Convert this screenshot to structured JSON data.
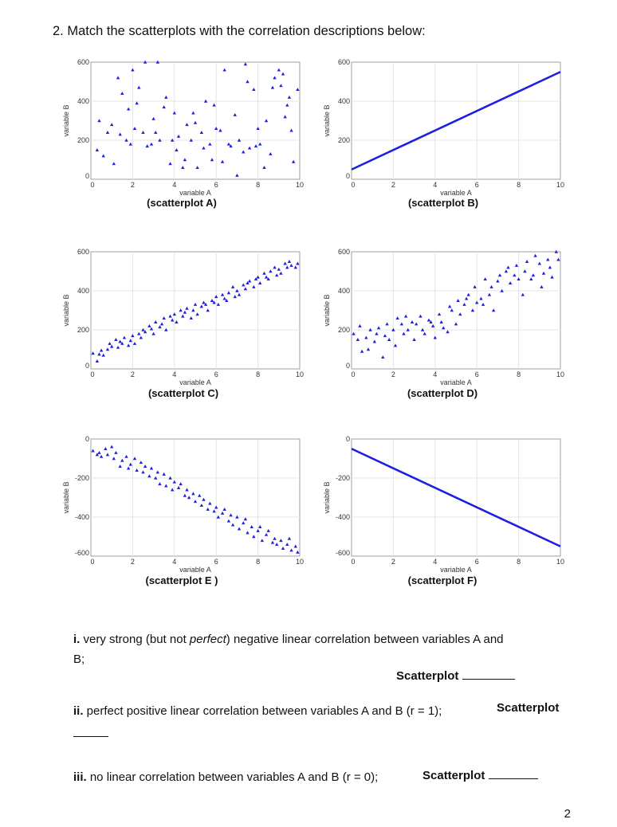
{
  "heading": "2.  Match the scatterplots with the correlation descriptions below:",
  "captions": {
    "A": "(scatterplot A)",
    "B": "(scatterplot B)",
    "C": "(scatterplot C)",
    "D": "(scatterplot D)",
    "E": "(scatterplot E )",
    "F": "(scatterplot F)"
  },
  "questions": {
    "i_num": "i.",
    "i_text_before": " very strong (but not ",
    "i_text_italic": "perfect",
    "i_text_after": ") negative linear correlation between variables A and",
    "i_text_line2": "B;",
    "i_answer": "Scatterplot",
    "ii_num": "ii.",
    "ii_text": " perfect positive linear correlation between variables A and B (r = 1);",
    "ii_answer": "Scatterplot",
    "iii_num": "iii.",
    "iii_text": " no linear correlation between variables A and B (r = 0);",
    "iii_answer": "Scatterplot"
  },
  "page_number": "2",
  "colors": {
    "points": "#1f1fe0",
    "grid": "#e4e4e4",
    "axis": "#888888"
  },
  "chart_data": [
    {
      "id": "A",
      "type": "scatter",
      "xlabel": "variable A",
      "ylabel": "variable B",
      "xlim": [
        0,
        10
      ],
      "ylim": [
        0,
        600
      ],
      "xticks": [
        "0",
        "2",
        "4",
        "6",
        "8",
        "10"
      ],
      "yticks": [
        "0",
        "200",
        "400",
        "600"
      ],
      "x": [
        0.3,
        0.4,
        0.6,
        0.8,
        1.0,
        1.1,
        1.3,
        1.4,
        1.5,
        1.7,
        1.8,
        1.9,
        2.0,
        2.1,
        2.2,
        2.3,
        2.5,
        2.6,
        2.7,
        2.9,
        3.0,
        3.1,
        3.2,
        3.3,
        3.5,
        3.6,
        3.8,
        3.9,
        4.0,
        4.1,
        4.2,
        4.4,
        4.5,
        4.6,
        4.8,
        4.9,
        5.0,
        5.1,
        5.3,
        5.4,
        5.5,
        5.7,
        5.8,
        5.9,
        6.0,
        6.2,
        6.3,
        6.4,
        6.6,
        6.7,
        6.9,
        7.0,
        7.1,
        7.3,
        7.4,
        7.5,
        7.6,
        7.8,
        7.9,
        8.0,
        8.1,
        8.3,
        8.4,
        8.6,
        8.7,
        8.8,
        9.0,
        9.1,
        9.2,
        9.3,
        9.4,
        9.5,
        9.6,
        9.7,
        9.9
      ],
      "y": [
        150,
        300,
        120,
        240,
        280,
        80,
        520,
        230,
        440,
        200,
        360,
        180,
        560,
        260,
        390,
        470,
        240,
        600,
        170,
        180,
        310,
        240,
        600,
        200,
        370,
        420,
        80,
        200,
        340,
        150,
        220,
        60,
        100,
        280,
        200,
        340,
        290,
        60,
        240,
        160,
        400,
        180,
        100,
        380,
        260,
        250,
        90,
        560,
        180,
        170,
        330,
        20,
        200,
        140,
        590,
        500,
        160,
        460,
        170,
        260,
        180,
        60,
        300,
        130,
        470,
        520,
        560,
        480,
        540,
        320,
        380,
        420,
        250,
        90,
        460
      ]
    },
    {
      "id": "B",
      "type": "line",
      "xlabel": "variable A",
      "ylabel": "variable B",
      "xlim": [
        0,
        10
      ],
      "ylim": [
        0,
        600
      ],
      "xticks": [
        "0",
        "2",
        "4",
        "6",
        "8",
        "10"
      ],
      "yticks": [
        "0",
        "200",
        "400",
        "600"
      ],
      "x": [
        0,
        10
      ],
      "y": [
        50,
        550
      ]
    },
    {
      "id": "C",
      "type": "scatter",
      "xlabel": "variable A",
      "ylabel": "variable B",
      "xlim": [
        0,
        10
      ],
      "ylim": [
        0,
        600
      ],
      "xticks": [
        "0",
        "2",
        "4",
        "6",
        "8",
        "10"
      ],
      "yticks": [
        "0",
        "200",
        "400",
        "600"
      ],
      "x": [
        0.1,
        0.3,
        0.4,
        0.5,
        0.6,
        0.8,
        0.9,
        1.0,
        1.2,
        1.3,
        1.4,
        1.5,
        1.6,
        1.8,
        1.9,
        2.0,
        2.1,
        2.3,
        2.4,
        2.5,
        2.6,
        2.8,
        2.9,
        3.0,
        3.1,
        3.3,
        3.4,
        3.5,
        3.6,
        3.8,
        3.9,
        4.0,
        4.1,
        4.3,
        4.4,
        4.5,
        4.6,
        4.8,
        4.9,
        5.0,
        5.1,
        5.3,
        5.4,
        5.5,
        5.6,
        5.8,
        5.9,
        6.0,
        6.1,
        6.3,
        6.4,
        6.5,
        6.6,
        6.8,
        6.9,
        7.0,
        7.1,
        7.3,
        7.4,
        7.5,
        7.6,
        7.8,
        7.9,
        8.0,
        8.1,
        8.3,
        8.4,
        8.5,
        8.6,
        8.8,
        8.9,
        9.0,
        9.1,
        9.3,
        9.4,
        9.5,
        9.6,
        9.8,
        9.9
      ],
      "y": [
        80,
        40,
        75,
        95,
        70,
        100,
        130,
        115,
        150,
        110,
        140,
        130,
        160,
        120,
        145,
        170,
        130,
        180,
        160,
        200,
        190,
        220,
        205,
        180,
        240,
        215,
        230,
        260,
        200,
        270,
        250,
        280,
        240,
        300,
        270,
        290,
        310,
        260,
        300,
        330,
        280,
        320,
        340,
        330,
        300,
        350,
        340,
        370,
        330,
        380,
        360,
        350,
        390,
        420,
        370,
        400,
        380,
        430,
        410,
        440,
        450,
        420,
        460,
        470,
        440,
        490,
        470,
        460,
        500,
        520,
        480,
        510,
        490,
        540,
        520,
        550,
        530,
        520,
        540
      ]
    },
    {
      "id": "D",
      "type": "scatter",
      "xlabel": "variable A",
      "ylabel": "variable B",
      "xlim": [
        0,
        10
      ],
      "ylim": [
        0,
        600
      ],
      "xticks": [
        "0",
        "2",
        "4",
        "6",
        "8",
        "10"
      ],
      "yticks": [
        "0",
        "200",
        "400",
        "600"
      ],
      "x": [
        0.1,
        0.3,
        0.4,
        0.5,
        0.7,
        0.8,
        0.9,
        1.1,
        1.2,
        1.3,
        1.5,
        1.6,
        1.7,
        1.8,
        2.0,
        2.1,
        2.2,
        2.4,
        2.5,
        2.6,
        2.7,
        2.9,
        3.0,
        3.1,
        3.3,
        3.4,
        3.5,
        3.7,
        3.8,
        3.9,
        4.0,
        4.2,
        4.3,
        4.4,
        4.6,
        4.7,
        4.8,
        5.0,
        5.1,
        5.2,
        5.4,
        5.5,
        5.6,
        5.8,
        5.9,
        6.0,
        6.2,
        6.3,
        6.4,
        6.6,
        6.7,
        6.8,
        7.0,
        7.1,
        7.2,
        7.4,
        7.5,
        7.6,
        7.8,
        7.9,
        8.0,
        8.2,
        8.3,
        8.4,
        8.6,
        8.7,
        8.8,
        9.0,
        9.1,
        9.2,
        9.4,
        9.5,
        9.6,
        9.8,
        9.9
      ],
      "y": [
        180,
        150,
        220,
        90,
        160,
        100,
        200,
        140,
        180,
        210,
        60,
        170,
        230,
        150,
        200,
        120,
        260,
        230,
        180,
        270,
        200,
        240,
        150,
        230,
        270,
        200,
        180,
        250,
        240,
        220,
        160,
        280,
        240,
        210,
        190,
        320,
        300,
        230,
        350,
        280,
        330,
        360,
        380,
        300,
        420,
        340,
        360,
        330,
        460,
        380,
        420,
        300,
        450,
        480,
        400,
        500,
        520,
        440,
        480,
        530,
        460,
        380,
        500,
        550,
        460,
        480,
        580,
        540,
        420,
        490,
        560,
        520,
        470,
        600,
        560
      ]
    },
    {
      "id": "E",
      "type": "scatter",
      "xlabel": "variable A",
      "ylabel": "variable B",
      "xlim": [
        0,
        10
      ],
      "ylim": [
        -600,
        0
      ],
      "xticks": [
        "0",
        "2",
        "4",
        "6",
        "8",
        "10"
      ],
      "yticks": [
        "0",
        "-200",
        "-400",
        "-600"
      ],
      "x": [
        0.1,
        0.3,
        0.4,
        0.5,
        0.7,
        0.8,
        1.0,
        1.1,
        1.2,
        1.4,
        1.5,
        1.7,
        1.8,
        1.9,
        2.1,
        2.2,
        2.4,
        2.5,
        2.6,
        2.8,
        2.9,
        3.1,
        3.2,
        3.3,
        3.5,
        3.6,
        3.8,
        3.9,
        4.0,
        4.2,
        4.3,
        4.5,
        4.6,
        4.7,
        4.9,
        5.0,
        5.2,
        5.3,
        5.4,
        5.6,
        5.7,
        5.9,
        6.0,
        6.1,
        6.3,
        6.4,
        6.6,
        6.7,
        6.8,
        7.0,
        7.1,
        7.3,
        7.4,
        7.5,
        7.7,
        7.8,
        8.0,
        8.1,
        8.2,
        8.4,
        8.5,
        8.7,
        8.8,
        8.9,
        9.1,
        9.2,
        9.4,
        9.5,
        9.6,
        9.8,
        9.9
      ],
      "y": [
        -60,
        -80,
        -70,
        -90,
        -50,
        -80,
        -40,
        -100,
        -70,
        -140,
        -110,
        -90,
        -150,
        -130,
        -100,
        -160,
        -120,
        -170,
        -140,
        -190,
        -150,
        -200,
        -170,
        -230,
        -180,
        -240,
        -200,
        -260,
        -220,
        -250,
        -230,
        -290,
        -260,
        -300,
        -280,
        -320,
        -290,
        -340,
        -310,
        -360,
        -330,
        -370,
        -350,
        -400,
        -380,
        -360,
        -420,
        -390,
        -440,
        -400,
        -460,
        -430,
        -410,
        -480,
        -450,
        -500,
        -470,
        -450,
        -520,
        -490,
        -470,
        -530,
        -510,
        -540,
        -520,
        -560,
        -540,
        -510,
        -570,
        -550,
        -580
      ]
    },
    {
      "id": "F",
      "type": "line",
      "xlabel": "variable A",
      "ylabel": "variable B",
      "xlim": [
        0,
        10
      ],
      "ylim": [
        -600,
        0
      ],
      "xticks": [
        "0",
        "2",
        "4",
        "6",
        "8",
        "10"
      ],
      "yticks": [
        "0",
        "-200",
        "-400",
        "-600"
      ],
      "x": [
        0,
        10
      ],
      "y": [
        -50,
        -550
      ]
    }
  ]
}
